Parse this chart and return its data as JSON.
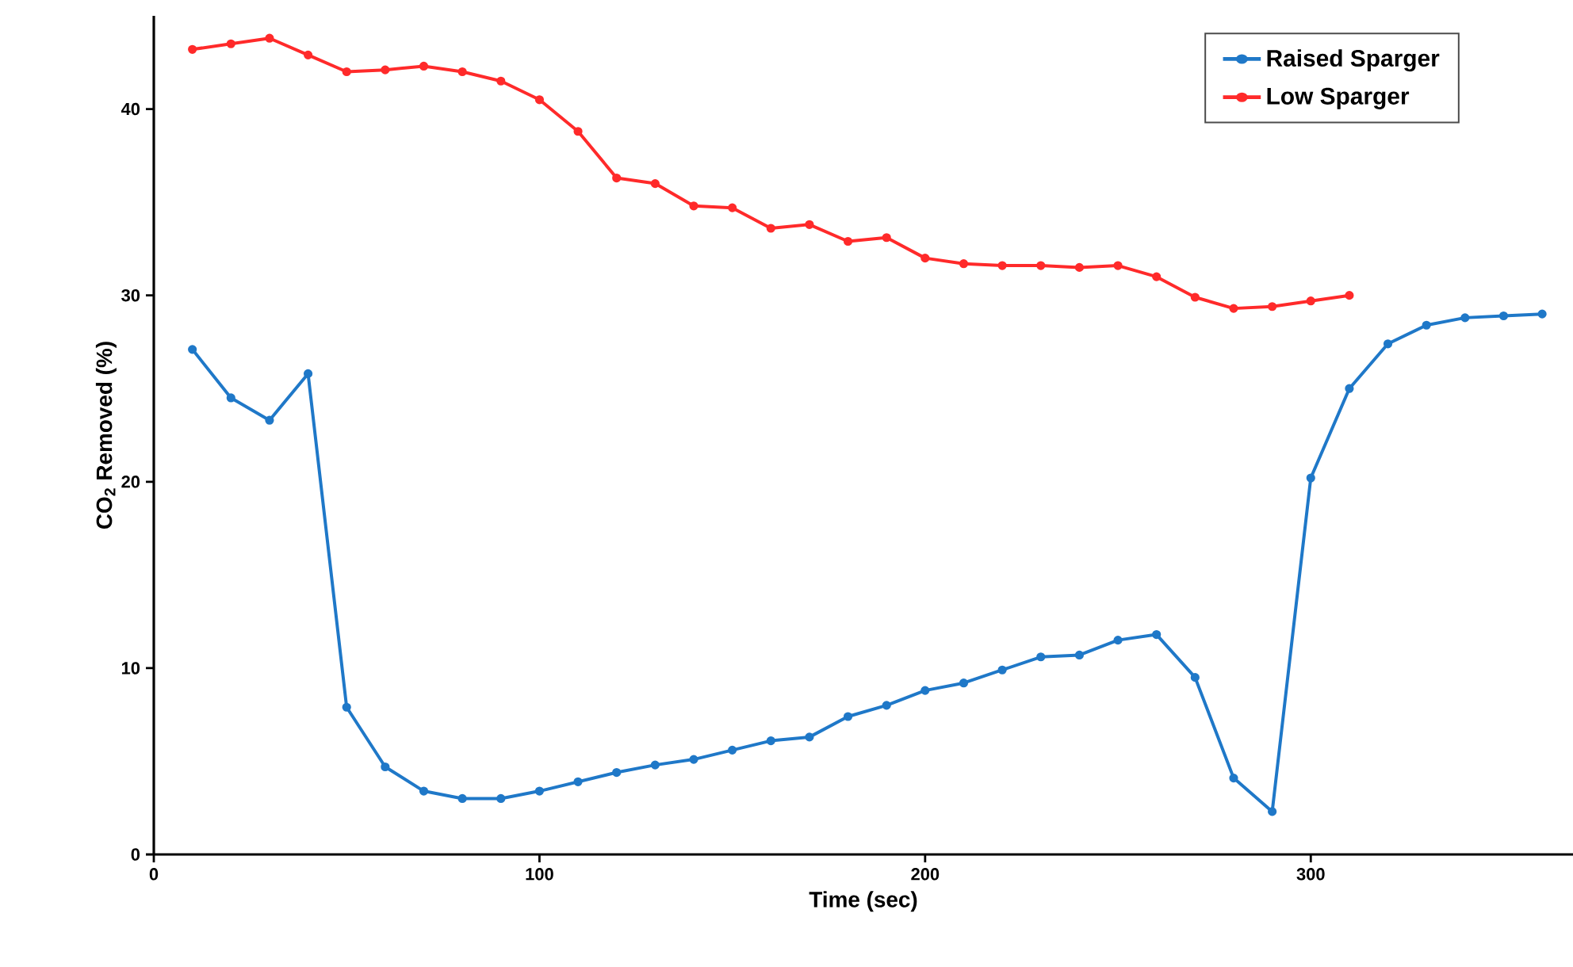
{
  "chart_data": {
    "type": "line",
    "xlabel": "Time (sec)",
    "ylabel": "CO$_{2}$ Removed (%)",
    "xlim": [
      0,
      368
    ],
    "ylim": [
      0,
      45
    ],
    "xticks": [
      0,
      100,
      200,
      300
    ],
    "yticks": [
      0,
      10,
      20,
      30,
      40
    ],
    "grid": false,
    "legend": "top right",
    "marker": "circle",
    "line_style": "solid",
    "series": [
      {
        "name": "Raised Sparger",
        "color": "#1f78c8",
        "x": [
          10,
          20,
          30,
          40,
          50,
          60,
          70,
          80,
          90,
          100,
          110,
          120,
          130,
          140,
          150,
          160,
          170,
          180,
          190,
          200,
          210,
          220,
          230,
          240,
          250,
          260,
          270,
          280,
          290,
          300,
          310,
          320,
          330,
          340,
          350,
          360
        ],
        "values": [
          27.1,
          24.5,
          23.3,
          25.8,
          7.9,
          4.7,
          3.4,
          3.0,
          3.0,
          3.4,
          3.9,
          4.4,
          4.8,
          5.1,
          5.6,
          6.1,
          6.3,
          7.4,
          8.0,
          8.8,
          9.2,
          9.9,
          10.6,
          10.7,
          11.5,
          11.8,
          9.5,
          4.1,
          2.3,
          20.2,
          25.0,
          27.4,
          28.4,
          28.8,
          28.9,
          29.0
        ]
      },
      {
        "name": "Low Sparger",
        "color": "#ff2a2a",
        "x": [
          10,
          20,
          30,
          40,
          50,
          60,
          70,
          80,
          90,
          100,
          110,
          120,
          130,
          140,
          150,
          160,
          170,
          180,
          190,
          200,
          210,
          220,
          230,
          240,
          250,
          260,
          270,
          280,
          290,
          300,
          310
        ],
        "values": [
          43.2,
          43.5,
          43.8,
          42.9,
          42.0,
          42.1,
          42.3,
          42.0,
          41.5,
          40.5,
          38.8,
          36.3,
          36.0,
          34.8,
          34.7,
          33.6,
          33.8,
          32.9,
          33.1,
          32.0,
          31.7,
          31.6,
          31.6,
          31.5,
          31.6,
          31.0,
          29.9,
          29.3,
          29.4,
          29.7,
          30.0
        ]
      }
    ]
  }
}
